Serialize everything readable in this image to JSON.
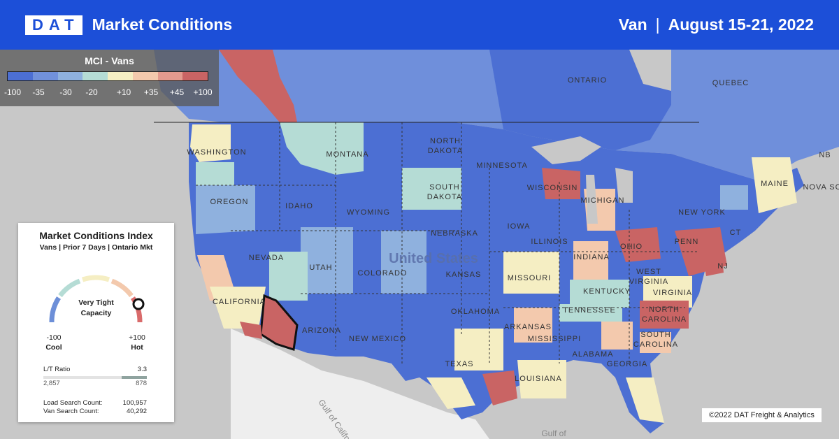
{
  "header": {
    "logo": "DAT",
    "title": "Market Conditions",
    "equipment": "Van",
    "separator": "|",
    "date_range": "August 15-21, 2022"
  },
  "legend": {
    "title": "MCI - Vans",
    "ticks": [
      "-100",
      "-35",
      "-30",
      "-20",
      "+10",
      "+35",
      "+45",
      "+100"
    ],
    "colors": [
      "#4c6fd3",
      "#7191db",
      "#8fb1de",
      "#b5dcd5",
      "#f5eec3",
      "#f3c9ad",
      "#e39a8e",
      "#c96464"
    ]
  },
  "card": {
    "title": "Market Conditions Index",
    "subtitle": "Vans | Prior 7 Days | Ontario Mkt",
    "gauge_label": [
      "Very Tight",
      "Capacity"
    ],
    "gauge_value": 100,
    "cool_value": "-100",
    "cool_label": "Cool",
    "hot_value": "+100",
    "hot_label": "Hot",
    "lt_ratio_label": "L/T Ratio",
    "lt_ratio_value": "3.3",
    "loads": "2,857",
    "trucks": "878",
    "load_search_label": "Load Search Count:",
    "load_search_value": "100,957",
    "van_search_label": "Van Search Count:",
    "van_search_value": "40,292"
  },
  "map_labels": {
    "ontario": "ONTARIO",
    "quebec": "QUEBEC",
    "washington": "WASHINGTON",
    "montana": "MONTANA",
    "north_dakota": [
      "NORTH",
      "DAKOTA"
    ],
    "minnesota": "MINNESOTA",
    "south_dakota": [
      "SOUTH",
      "DAKOTA"
    ],
    "oregon": "OREGON",
    "idaho": "IDAHO",
    "wyoming": "WYOMING",
    "wisconsin": "WISCONSIN",
    "michigan": "MICHIGAN",
    "iowa": "IOWA",
    "nebraska": "NEBRASKA",
    "nevada": "NEVADA",
    "utah": "UTAH",
    "colorado": "COLORADO",
    "kansas": "KANSAS",
    "united_states": "United States",
    "illinois": "ILLINOIS",
    "indiana": "INDIANA",
    "ohio": "OHIO",
    "penn": "PENN",
    "new_york": "NEW YORK",
    "maine": "MAINE",
    "nova_scotia": "NOVA SC",
    "nb": "NB",
    "ct": "CT",
    "nj": "NJ",
    "california": "CALIFORNIA",
    "arizona": "ARIZONA",
    "new_mexico": "NEW MEXICO",
    "oklahoma": "OKLAHOMA",
    "missouri": "MISSOURI",
    "kentucky": "KENTUCKY",
    "west_virginia": [
      "WEST",
      "VIRGINIA"
    ],
    "virginia": "VIRGINIA",
    "tennessee": "TENNESSEE",
    "north_carolina": [
      "NORTH",
      "CAROLINA"
    ],
    "arkansas": "ARKANSAS",
    "mississippi": "MISSISSIPPI",
    "south_carolina": [
      "SOUTH",
      "CAROLINA"
    ],
    "alabama": "ALABAMA",
    "georgia": "GEORGIA",
    "texas": "TEXAS",
    "louisiana": "LOUISIANA",
    "gulf_california": "Gulf of California",
    "gulf_mexico": "Gulf of"
  },
  "copyright": "©2022 DAT Freight & Analytics"
}
